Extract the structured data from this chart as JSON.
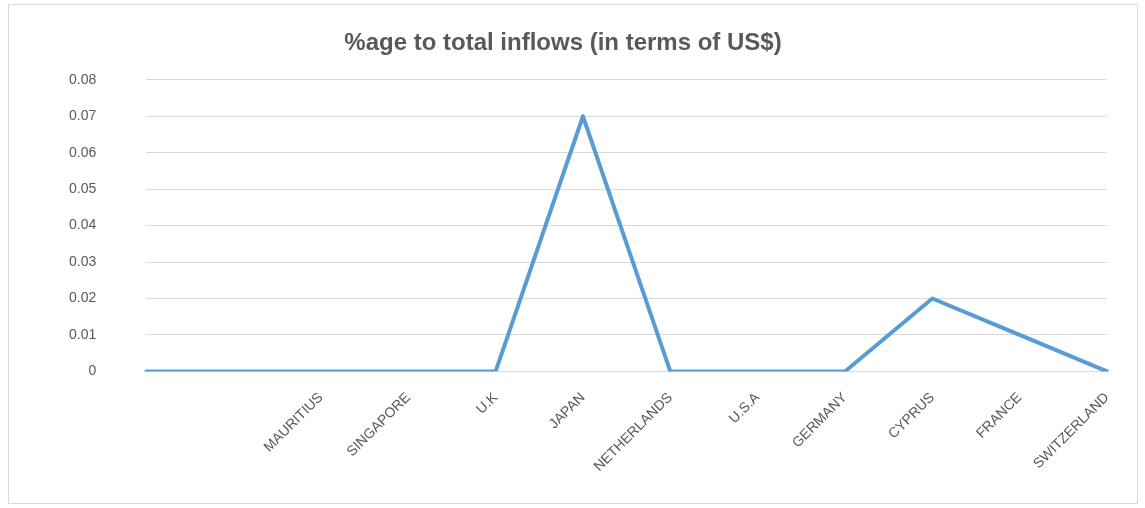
{
  "chart_data": {
    "type": "line",
    "title": "%age to total inflows (in terms of US$)",
    "categories": [
      null,
      null,
      "MAURITIUS",
      "SINGAPORE",
      "U.K",
      "JAPAN",
      "NETHERLANDS",
      "U.S.A",
      "GERMANY",
      "CYPRUS",
      "FRANCE",
      "SWITZERLAND"
    ],
    "series": [
      {
        "color": "#5b9bd5",
        "values": [
          0,
          0,
          0,
          0,
          0,
          0.07,
          0,
          0,
          0,
          0.02,
          0.01,
          0
        ]
      }
    ],
    "ylim": [
      0,
      0.08
    ],
    "yticks": [
      0,
      0.01,
      0.02,
      0.03,
      0.04,
      0.05,
      0.06,
      0.07,
      0.08
    ],
    "grid": "y",
    "legend": false,
    "marker": "none",
    "line_style": "solid"
  }
}
